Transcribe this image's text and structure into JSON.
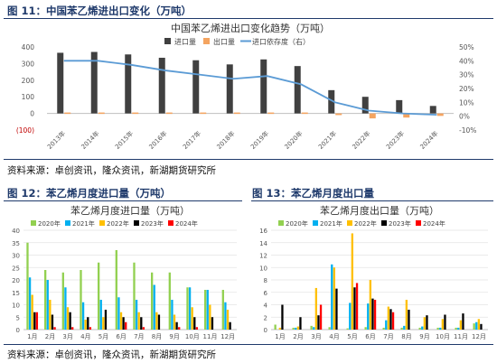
{
  "fig11": {
    "title": "图 11：中国苯乙烯进出口变化（万吨）"
  },
  "fig12": {
    "title": "图 12：苯乙烯月度进口量（万吨）"
  },
  "fig13": {
    "title": "图 13：苯乙烯月度出口量"
  },
  "source_top": "资料来源：卓创资讯，隆众资讯，新湖期货研究所",
  "source_bottom": "资料来源：卓创资讯，隆众资讯，新湖期货研究所",
  "colors": {
    "import": "#404040",
    "export": "#f4a460",
    "dependency": "#5b9bd5",
    "y2020": "#92d050",
    "y2021": "#00b0f0",
    "y2022": "#ffc000",
    "y2023": "#000000",
    "y2024": "#ff0000"
  },
  "chart_data": [
    {
      "type": "bar",
      "title": "中国苯乙烯进出口变化趋势（万吨）",
      "categories": [
        "2013年",
        "2014年",
        "2015年",
        "2016年",
        "2017年",
        "2018年",
        "2019年",
        "2020年",
        "2021年",
        "2022年",
        "2023年",
        "2024年"
      ],
      "series": [
        {
          "name": "进口量",
          "type": "bar",
          "values": [
            365,
            370,
            355,
            335,
            320,
            295,
            325,
            285,
            140,
            100,
            80,
            45
          ]
        },
        {
          "name": "出口量",
          "type": "bar",
          "values": [
            0,
            0,
            0,
            0,
            0,
            0,
            0,
            0,
            -10,
            -30,
            -25,
            -15
          ]
        },
        {
          "name": "进口依存度（右）",
          "type": "line",
          "axis": "right",
          "values": [
            40,
            40,
            37,
            33,
            30,
            27,
            29,
            23,
            10,
            4,
            2,
            1
          ]
        }
      ],
      "yticks": [
        "400",
        "300",
        "200",
        "100",
        "0",
        "(100)"
      ],
      "ylim": [
        -100,
        400
      ],
      "y2ticks": [
        "50%",
        "40%",
        "30%",
        "20%",
        "10%",
        "0%",
        "-10%"
      ],
      "y2lim": [
        -0.1,
        0.5
      ],
      "legend": "top"
    },
    {
      "type": "bar",
      "title": "苯乙烯月度进口量（万吨）",
      "categories": [
        "1月",
        "2月",
        "3月",
        "4月",
        "5月",
        "6月",
        "7月",
        "8月",
        "9月",
        "10月",
        "11月",
        "12月"
      ],
      "series": [
        {
          "name": "2020年",
          "values": [
            35,
            24,
            23,
            24,
            27,
            32,
            27,
            23,
            23,
            17,
            16,
            16
          ]
        },
        {
          "name": "2021年",
          "values": [
            21,
            20,
            17,
            11,
            12,
            13,
            12,
            18,
            12,
            17,
            16,
            11
          ]
        },
        {
          "name": "2022年",
          "values": [
            14,
            12,
            9,
            4,
            5,
            7,
            7,
            7,
            6,
            9,
            10,
            8
          ]
        },
        {
          "name": "2023年",
          "values": [
            7,
            6,
            7,
            5,
            8,
            5,
            5,
            6,
            3,
            5,
            5,
            3
          ]
        },
        {
          "name": "2024年",
          "values": [
            7,
            1,
            1,
            1,
            0,
            3,
            1,
            0,
            1,
            1,
            0,
            0
          ]
        }
      ],
      "yticks": [
        "0",
        "5",
        "10",
        "15",
        "20",
        "25",
        "30",
        "35",
        "40"
      ],
      "ylim": [
        0,
        40
      ],
      "legend": "top"
    },
    {
      "type": "bar",
      "title": "苯乙烯月度出口量（万吨）",
      "categories": [
        "1月",
        "2月",
        "3月",
        "4月",
        "5月",
        "6月",
        "7月",
        "8月",
        "9月",
        "10月",
        "11月",
        "12月"
      ],
      "series": [
        {
          "name": "2020年",
          "values": [
            0.8,
            0.3,
            0.6,
            0.4,
            0.2,
            0.4,
            0.3,
            0.3,
            0.3,
            0.3,
            0.3,
            1.0
          ]
        },
        {
          "name": "2021年",
          "values": [
            0,
            0.3,
            0.4,
            10.5,
            4.3,
            4.2,
            1.5,
            0.6,
            0.5,
            0.3,
            0.3,
            1.2
          ]
        },
        {
          "name": "2022年",
          "values": [
            0.3,
            0.5,
            6.7,
            10,
            15.5,
            8,
            3.7,
            4.8,
            2.0,
            1.7,
            1.5,
            1.7
          ]
        },
        {
          "name": "2023年",
          "values": [
            4.0,
            2.0,
            2.3,
            6.6,
            6.8,
            5.0,
            3.3,
            3.2,
            2.3,
            2.4,
            2.6,
            0.9
          ]
        },
        {
          "name": "2024年",
          "values": [
            0,
            0,
            4.0,
            0,
            7.5,
            4.8,
            2.8,
            0,
            0,
            0,
            0,
            0
          ]
        }
      ],
      "yticks": [
        "0",
        "2",
        "4",
        "6",
        "8",
        "10",
        "12",
        "14",
        "16"
      ],
      "ylim": [
        0,
        16
      ],
      "legend": "top"
    }
  ]
}
